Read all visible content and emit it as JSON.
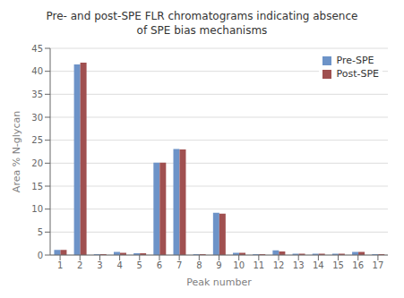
{
  "chart_data": {
    "type": "bar",
    "title": "Pre- and post-SPE FLR chromatograms indicating absence\nof SPE bias mechanisms",
    "xlabel": "Peak number",
    "ylabel": "Area % N-glycan",
    "categories": [
      1,
      2,
      3,
      4,
      5,
      6,
      7,
      8,
      9,
      10,
      11,
      12,
      13,
      14,
      15,
      16,
      17
    ],
    "series": [
      {
        "name": "Pre-SPE",
        "color": "#6d93c8",
        "values": [
          1.1,
          41.5,
          0.2,
          0.7,
          0.4,
          20.1,
          23.1,
          0.2,
          9.2,
          0.5,
          0.2,
          1.0,
          0.3,
          0.3,
          0.3,
          0.7,
          0.2
        ]
      },
      {
        "name": "Post-SPE",
        "color": "#a05050",
        "values": [
          1.1,
          41.9,
          0.2,
          0.5,
          0.4,
          20.1,
          23.0,
          0.2,
          9.0,
          0.5,
          0.2,
          0.8,
          0.3,
          0.3,
          0.3,
          0.7,
          0.2
        ]
      }
    ],
    "ylim": [
      0,
      45
    ],
    "yticks": [
      0,
      5,
      10,
      15,
      20,
      25,
      30,
      35,
      40,
      45
    ],
    "grid": true,
    "legend": "upper right"
  }
}
